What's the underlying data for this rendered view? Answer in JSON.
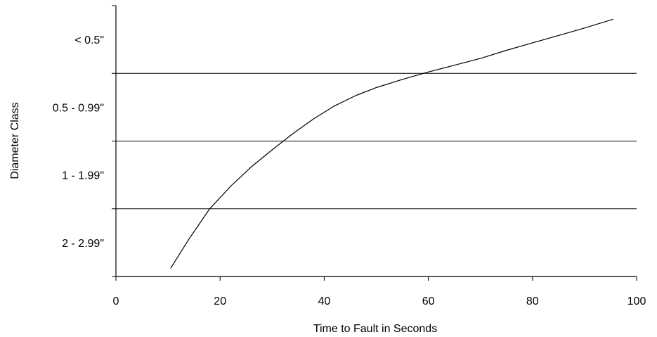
{
  "chart_data": {
    "type": "line",
    "title": "",
    "xlabel": "Time to Fault in Seconds",
    "ylabel": "Diameter Class",
    "xlim": [
      0,
      100
    ],
    "x_ticks": [
      "0",
      "20",
      "40",
      "60",
      "80",
      "100"
    ],
    "categories_y": [
      "< 0.5\"",
      "0.5 - 0.99\"",
      "1 - 1.99\"",
      "2 - 2.99\""
    ],
    "grid": "horizontal lines between diameter classes",
    "legend": "none",
    "series": [
      {
        "color": "#000000",
        "x": [
          10.5,
          14,
          18,
          22,
          26,
          30,
          34,
          38,
          42,
          46,
          50,
          55,
          60,
          65,
          70,
          75,
          80,
          85,
          90,
          95.5
        ],
        "y": [
          0.12,
          0.55,
          1.0,
          1.33,
          1.62,
          1.87,
          2.11,
          2.33,
          2.52,
          2.67,
          2.79,
          2.91,
          3.02,
          3.12,
          3.22,
          3.34,
          3.45,
          3.56,
          3.67,
          3.8
        ]
      }
    ]
  }
}
